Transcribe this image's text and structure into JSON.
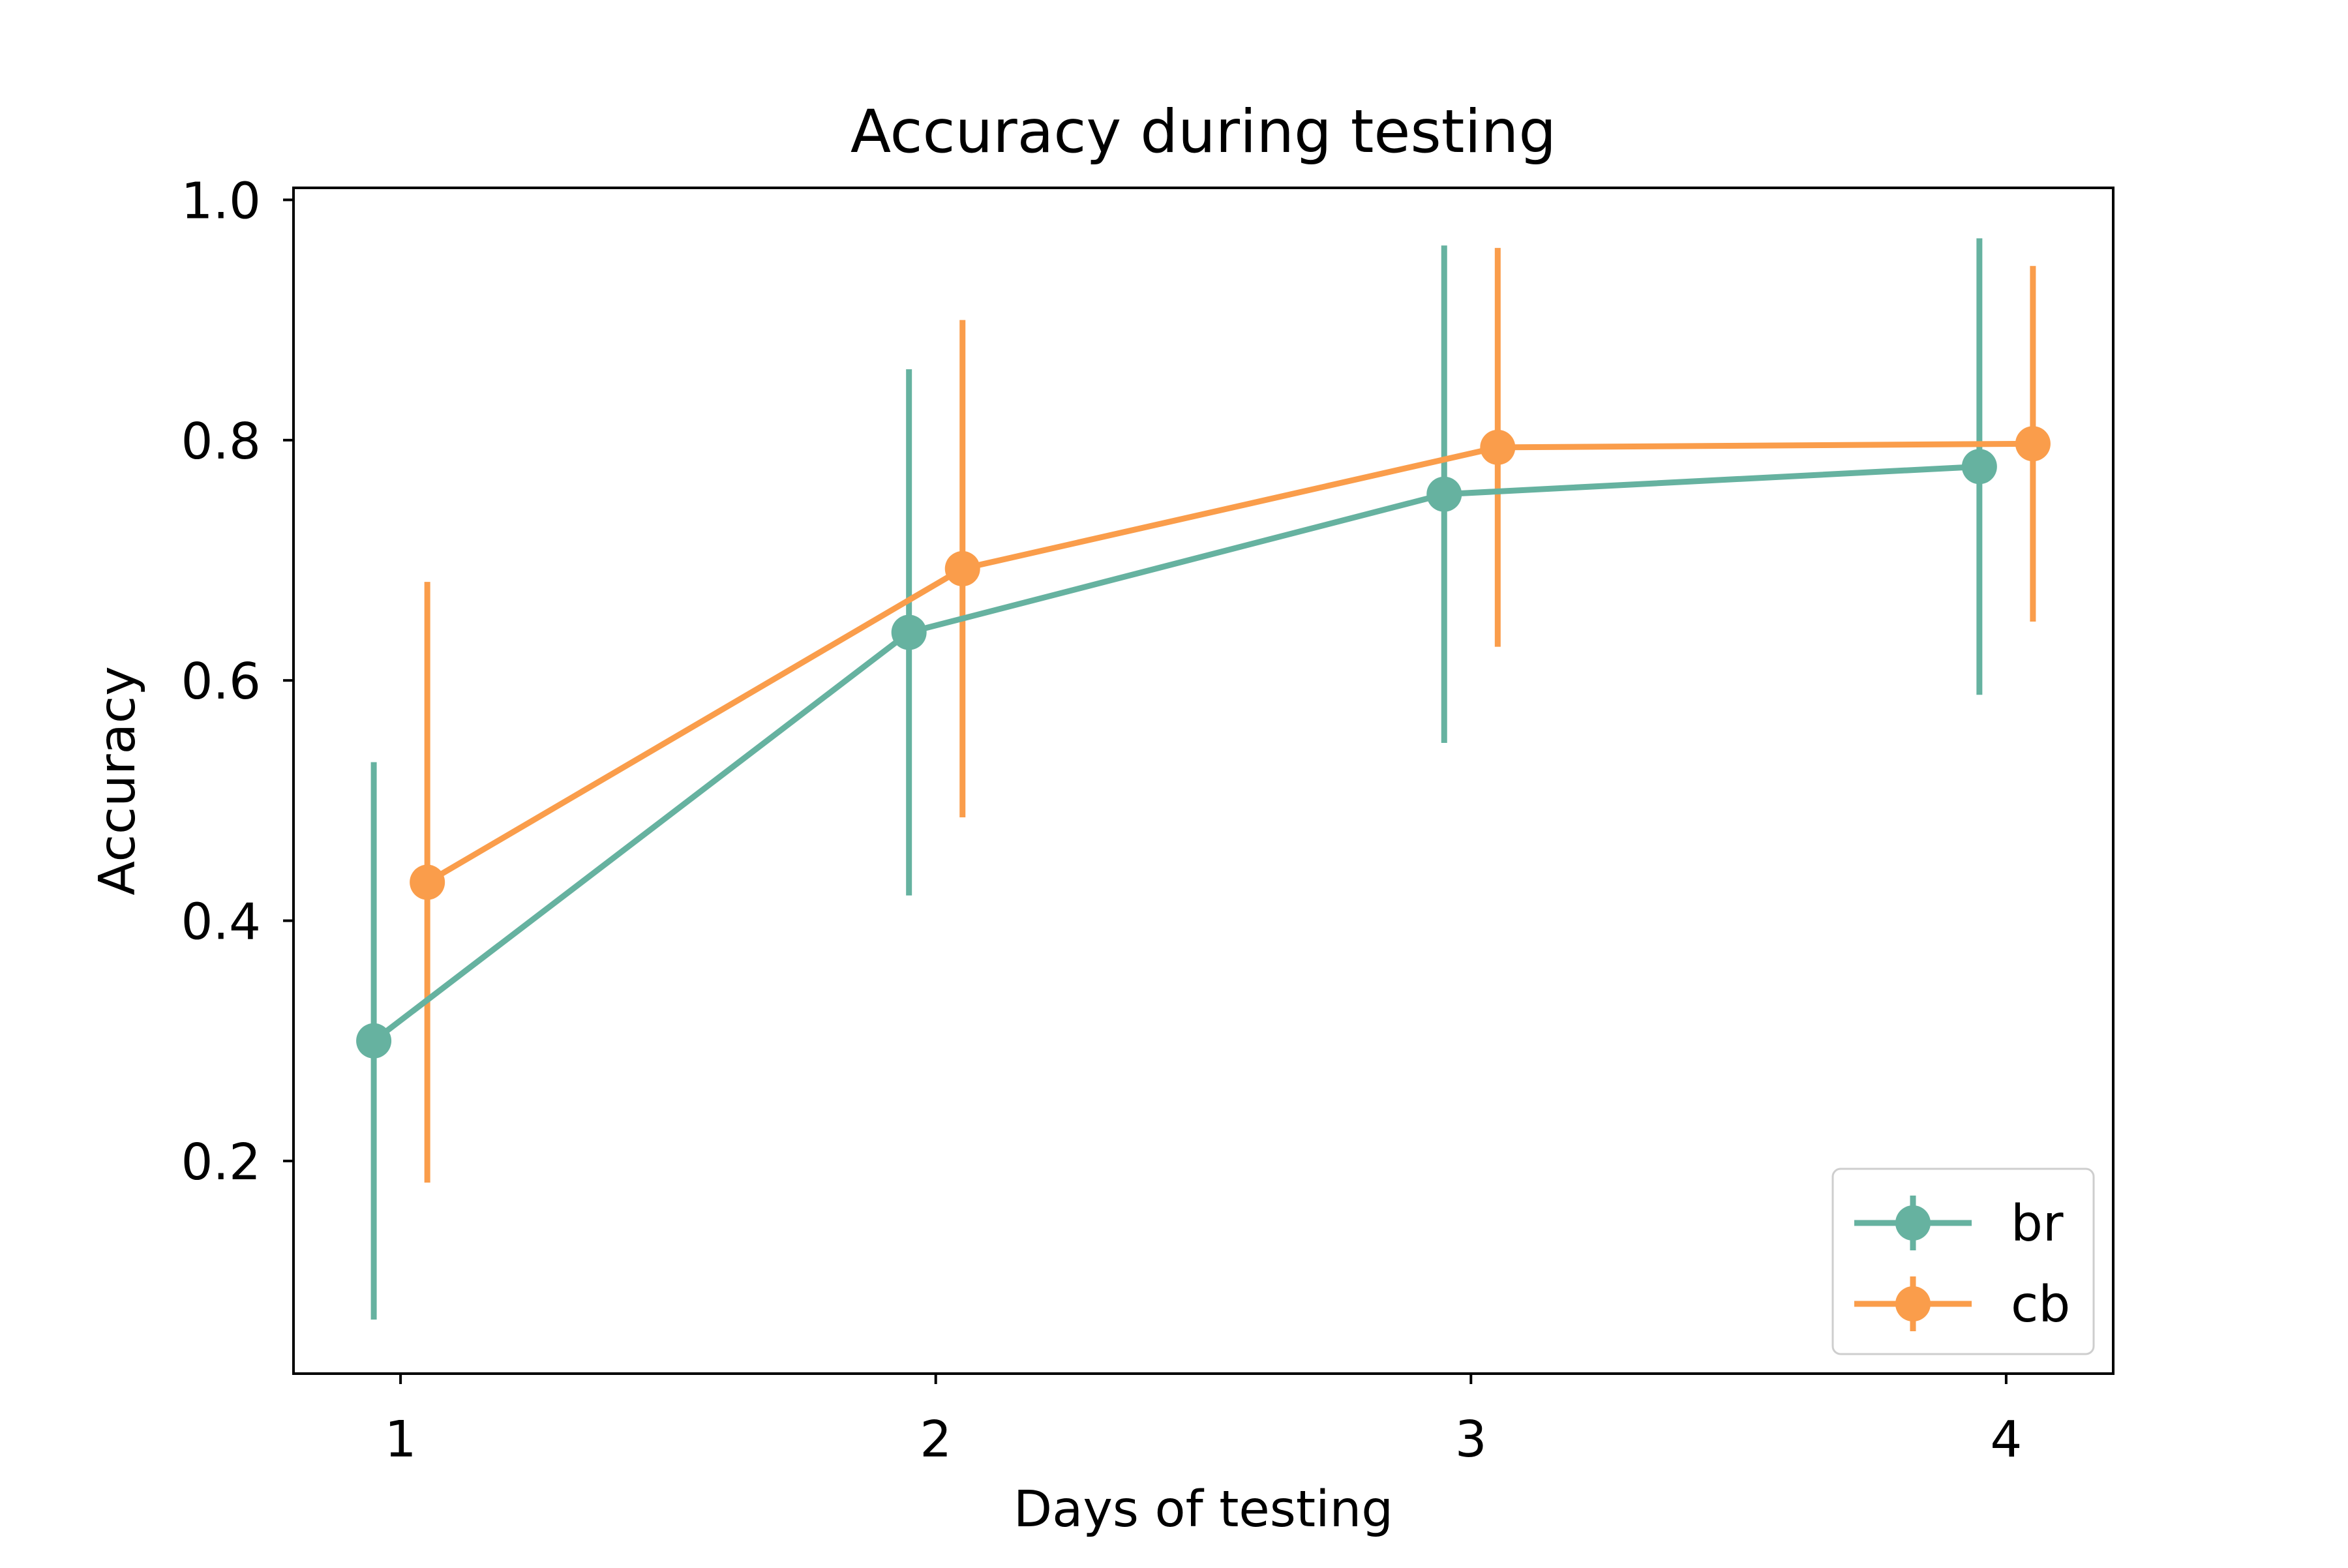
{
  "chart_data": {
    "type": "line",
    "title": "Accuracy during testing",
    "xlabel": "Days of testing",
    "ylabel": "Accuracy",
    "xlim": [
      0.8,
      4.2
    ],
    "ylim": [
      0.023,
      1.01
    ],
    "xticks": [
      1,
      2,
      3,
      4
    ],
    "xtick_labels": [
      "1",
      "2",
      "3",
      "4"
    ],
    "yticks": [
      0.2,
      0.4,
      0.6,
      0.8,
      1.0
    ],
    "ytick_labels": [
      "0.2",
      "0.4",
      "0.6",
      "0.8",
      "1.0"
    ],
    "grid": false,
    "legend_position": "lower right",
    "series": [
      {
        "name": "br",
        "color": "#66b2a0",
        "x": [
          0.95,
          1.95,
          2.95,
          3.95
        ],
        "y": [
          0.3,
          0.64,
          0.755,
          0.778
        ],
        "err": [
          0.232,
          0.219,
          0.207,
          0.19
        ]
      },
      {
        "name": "cb",
        "color": "#fa9d4b",
        "x": [
          1.05,
          2.05,
          3.05,
          4.05
        ],
        "y": [
          0.432,
          0.693,
          0.794,
          0.797
        ],
        "err": [
          0.25,
          0.207,
          0.166,
          0.148
        ]
      }
    ]
  }
}
